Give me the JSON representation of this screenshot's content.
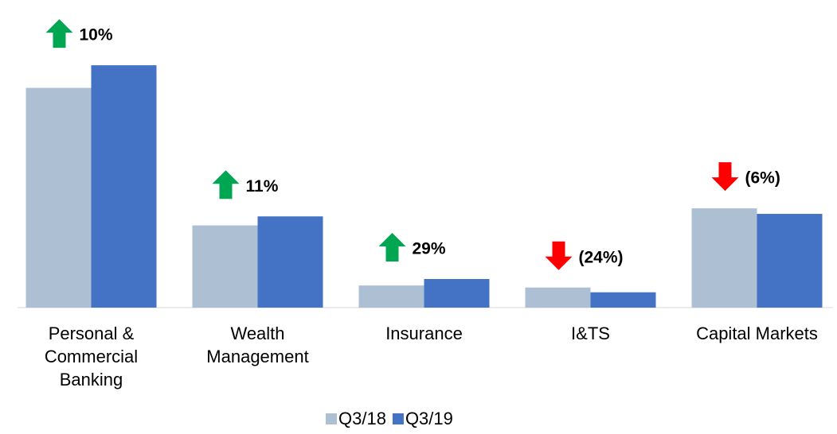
{
  "chart_data": {
    "type": "bar",
    "categories": [
      "Personal &\nCommercial\nBanking",
      "Wealth\nManagement",
      "Insurance",
      "I&TS",
      "Capital Markets"
    ],
    "series": [
      {
        "name": "Q3/18",
        "color": "#adc0d3",
        "values": [
          1390,
          520,
          140,
          127,
          628
        ]
      },
      {
        "name": "Q3/19",
        "color": "#4472c4",
        "values": [
          1533,
          577,
          181,
          97,
          593
        ]
      }
    ],
    "changes": [
      {
        "label": "10%",
        "direction": "up"
      },
      {
        "label": "11%",
        "direction": "up"
      },
      {
        "label": "29%",
        "direction": "up"
      },
      {
        "label": "(24%)",
        "direction": "down"
      },
      {
        "label": "(6%)",
        "direction": "down"
      }
    ],
    "up_color": "#00a651",
    "down_color": "#ff0000",
    "ylim": [
      0,
      1800
    ]
  }
}
